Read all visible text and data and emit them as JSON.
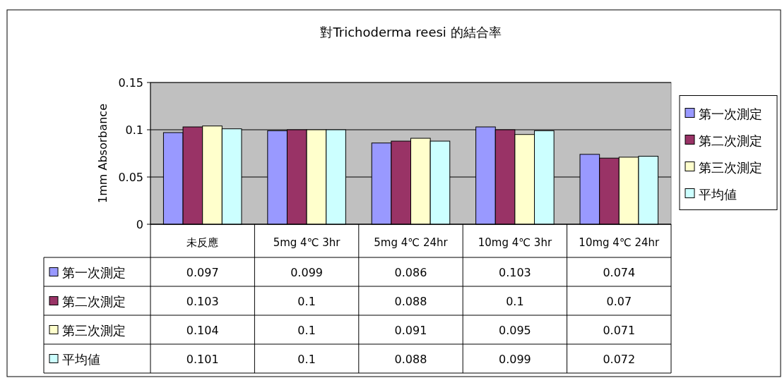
{
  "chart_data": {
    "type": "bar",
    "title": "對Trichoderma reesi 的結合率",
    "ylabel": "1mm Absorbance",
    "categories": [
      "未反應",
      "5mg 4℃ 3hr",
      "5mg 4℃ 24hr",
      "10mg 4℃ 3hr",
      "10mg 4℃ 24hr"
    ],
    "series": [
      {
        "name": "第一次測定",
        "color": "#9999ff",
        "values": [
          0.097,
          0.099,
          0.086,
          0.103,
          0.074
        ]
      },
      {
        "name": "第二次測定",
        "color": "#993366",
        "values": [
          0.103,
          0.1,
          0.088,
          0.1,
          0.07
        ]
      },
      {
        "name": "第三次測定",
        "color": "#ffffcc",
        "values": [
          0.104,
          0.1,
          0.091,
          0.095,
          0.071
        ]
      },
      {
        "name": "平均値",
        "color": "#ccffff",
        "values": [
          0.101,
          0.1,
          0.088,
          0.099,
          0.072
        ]
      }
    ],
    "ylim": [
      0,
      0.15
    ],
    "yticks": [
      0,
      0.05,
      0.1,
      0.15
    ],
    "grid": "y",
    "legend": "right",
    "data_labels": true
  }
}
